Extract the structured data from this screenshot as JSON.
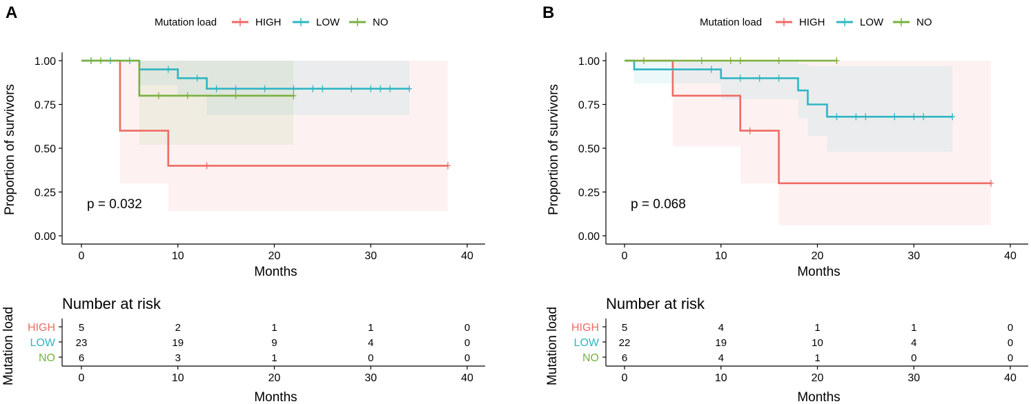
{
  "colors": {
    "HIGH": "#ee6b64",
    "LOW": "#2fb5c3",
    "NO": "#7ab03e"
  },
  "chart_data": [
    {
      "type": "line",
      "subtype": "kaplan-meier",
      "panel_label": "A",
      "legend_title": "Mutation load",
      "legend_placement": "top",
      "xlabel": "Months",
      "ylabel": "Proportion of survivors",
      "xlim": [
        0,
        40
      ],
      "ylim": [
        0,
        1
      ],
      "xticks": [
        0,
        10,
        20,
        30,
        40
      ],
      "yticks": [
        0,
        0.25,
        0.5,
        0.75,
        1
      ],
      "ytick_labels": [
        "0.00",
        "0.25",
        "0.50",
        "0.75",
        "1.00"
      ],
      "pvalue": "p = 0.032",
      "series": [
        {
          "name": "HIGH",
          "steps": [
            [
              0,
              1
            ],
            [
              4,
              0.6
            ],
            [
              9,
              0.4
            ],
            [
              38,
              0.4
            ]
          ],
          "ci": [
            [
              0,
              1,
              1
            ],
            [
              4,
              0.3,
              1
            ],
            [
              9,
              0.14,
              1
            ],
            [
              38,
              0.14,
              1
            ]
          ],
          "censor": [
            [
              13,
              0.4
            ],
            [
              38,
              0.4
            ]
          ]
        },
        {
          "name": "LOW",
          "steps": [
            [
              0,
              1
            ],
            [
              6,
              0.95
            ],
            [
              10,
              0.9
            ],
            [
              13,
              0.84
            ],
            [
              34,
              0.84
            ]
          ],
          "ci": [
            [
              0,
              1,
              1
            ],
            [
              6,
              0.86,
              1
            ],
            [
              10,
              0.8,
              1
            ],
            [
              13,
              0.69,
              1
            ],
            [
              34,
              0.69,
              1
            ]
          ],
          "censor": [
            [
              1,
              1
            ],
            [
              3,
              1
            ],
            [
              5,
              1
            ],
            [
              9,
              0.95
            ],
            [
              12,
              0.9
            ],
            [
              14,
              0.84
            ],
            [
              16,
              0.84
            ],
            [
              19,
              0.84
            ],
            [
              22,
              0.84
            ],
            [
              24,
              0.84
            ],
            [
              25,
              0.84
            ],
            [
              28,
              0.84
            ],
            [
              30,
              0.84
            ],
            [
              31,
              0.84
            ],
            [
              32,
              0.84
            ],
            [
              34,
              0.84
            ]
          ]
        },
        {
          "name": "NO",
          "steps": [
            [
              0,
              1
            ],
            [
              6,
              0.8
            ],
            [
              22,
              0.8
            ]
          ],
          "ci": [
            [
              0,
              1,
              1
            ],
            [
              6,
              0.52,
              1
            ],
            [
              22,
              0.52,
              1
            ]
          ],
          "censor": [
            [
              1,
              1
            ],
            [
              2,
              1
            ],
            [
              8,
              0.8
            ],
            [
              11,
              0.8
            ],
            [
              16,
              0.8
            ],
            [
              22,
              0.8
            ]
          ]
        }
      ],
      "risk_table": {
        "title": "Number at risk",
        "ylabel": "Mutation load",
        "xlabel": "Months",
        "times": [
          0,
          10,
          20,
          30,
          40
        ],
        "rows": [
          {
            "name": "HIGH",
            "values": [
              "5",
              "2",
              "1",
              "1",
              "0"
            ]
          },
          {
            "name": "LOW",
            "values": [
              "23",
              "19",
              "9",
              "4",
              "0"
            ]
          },
          {
            "name": "NO",
            "values": [
              "6",
              "3",
              "1",
              "0",
              "0"
            ]
          }
        ]
      }
    },
    {
      "type": "line",
      "subtype": "kaplan-meier",
      "panel_label": "B",
      "legend_title": "Mutation load",
      "legend_placement": "top",
      "xlabel": "Months",
      "ylabel": "Proportion of survivors",
      "xlim": [
        0,
        40
      ],
      "ylim": [
        0,
        1
      ],
      "xticks": [
        0,
        10,
        20,
        30,
        40
      ],
      "yticks": [
        0,
        0.25,
        0.5,
        0.75,
        1
      ],
      "ytick_labels": [
        "0.00",
        "0.25",
        "0.50",
        "0.75",
        "1.00"
      ],
      "pvalue": "p = 0.068",
      "series": [
        {
          "name": "HIGH",
          "steps": [
            [
              0,
              1
            ],
            [
              5,
              0.8
            ],
            [
              12,
              0.6
            ],
            [
              16,
              0.3
            ],
            [
              38,
              0.3
            ]
          ],
          "ci": [
            [
              0,
              1,
              1
            ],
            [
              5,
              0.51,
              1
            ],
            [
              12,
              0.3,
              1
            ],
            [
              16,
              0.06,
              1
            ],
            [
              38,
              0.06,
              1
            ]
          ],
          "censor": [
            [
              13,
              0.6
            ],
            [
              38,
              0.3
            ]
          ]
        },
        {
          "name": "LOW",
          "steps": [
            [
              0,
              1
            ],
            [
              1,
              0.95
            ],
            [
              10,
              0.9
            ],
            [
              18,
              0.83
            ],
            [
              19,
              0.75
            ],
            [
              21,
              0.68
            ],
            [
              34,
              0.68
            ]
          ],
          "ci": [
            [
              0,
              1,
              1
            ],
            [
              1,
              0.87,
              1
            ],
            [
              10,
              0.78,
              1
            ],
            [
              18,
              0.67,
              0.98
            ],
            [
              19,
              0.57,
              0.97
            ],
            [
              21,
              0.48,
              0.97
            ],
            [
              34,
              0.48,
              0.97
            ]
          ],
          "censor": [
            [
              9,
              0.95
            ],
            [
              12,
              0.9
            ],
            [
              14,
              0.9
            ],
            [
              16,
              0.9
            ],
            [
              22,
              0.68
            ],
            [
              24,
              0.68
            ],
            [
              25,
              0.68
            ],
            [
              28,
              0.68
            ],
            [
              30,
              0.68
            ],
            [
              31,
              0.68
            ],
            [
              34,
              0.68
            ]
          ]
        },
        {
          "name": "NO",
          "steps": [
            [
              0,
              1
            ],
            [
              22,
              1
            ]
          ],
          "ci": [],
          "censor": [
            [
              2,
              1
            ],
            [
              8,
              1
            ],
            [
              11,
              1
            ],
            [
              12,
              1
            ],
            [
              16,
              1
            ],
            [
              22,
              1
            ]
          ]
        }
      ],
      "risk_table": {
        "title": "Number at risk",
        "ylabel": "Mutation load",
        "xlabel": "Months",
        "times": [
          0,
          10,
          20,
          30,
          40
        ],
        "rows": [
          {
            "name": "HIGH",
            "values": [
              "5",
              "4",
              "1",
              "1",
              "0"
            ]
          },
          {
            "name": "LOW",
            "values": [
              "22",
              "19",
              "10",
              "4",
              "0"
            ]
          },
          {
            "name": "NO",
            "values": [
              "6",
              "4",
              "1",
              "0",
              "0"
            ]
          }
        ]
      }
    }
  ]
}
